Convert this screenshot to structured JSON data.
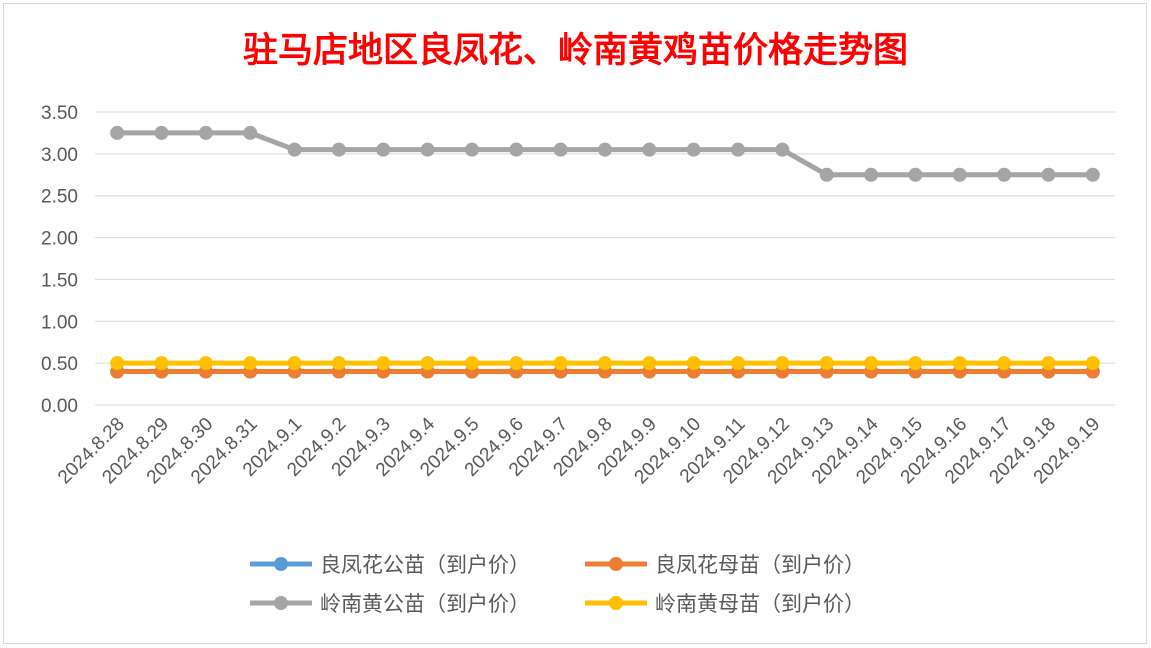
{
  "chart_data": {
    "type": "line",
    "title": "驻马店地区良凤花、岭南黄鸡苗价格走势图",
    "xlabel": "",
    "ylabel": "",
    "x": [
      "2024.8.28",
      "2024.8.29",
      "2024.8.30",
      "2024.8.31",
      "2024.9.1",
      "2024.9.2",
      "2024.9.3",
      "2024.9.4",
      "2024.9.5",
      "2024.9.6",
      "2024.9.7",
      "2024.9.8",
      "2024.9.9",
      "2024.9.10",
      "2024.9.11",
      "2024.9.12",
      "2024.9.13",
      "2024.9.14",
      "2024.9.15",
      "2024.9.16",
      "2024.9.17",
      "2024.9.18",
      "2024.9.19"
    ],
    "ylim": [
      0,
      3.5
    ],
    "yticks": [
      "0.00",
      "0.50",
      "1.00",
      "1.50",
      "2.00",
      "2.50",
      "3.00",
      "3.50"
    ],
    "grid": true,
    "legend_position": "bottom",
    "series": [
      {
        "name": "良凤花公苗（到户价）",
        "color": "#5B9BD5",
        "values": [
          0.4,
          0.4,
          0.4,
          0.4,
          0.4,
          0.4,
          0.4,
          0.4,
          0.4,
          0.4,
          0.4,
          0.4,
          0.4,
          0.4,
          0.4,
          0.4,
          0.4,
          0.4,
          0.4,
          0.4,
          0.4,
          0.4,
          0.4
        ]
      },
      {
        "name": "良凤花母苗（到户价）",
        "color": "#ED7D31",
        "values": [
          0.4,
          0.4,
          0.4,
          0.4,
          0.4,
          0.4,
          0.4,
          0.4,
          0.4,
          0.4,
          0.4,
          0.4,
          0.4,
          0.4,
          0.4,
          0.4,
          0.4,
          0.4,
          0.4,
          0.4,
          0.4,
          0.4,
          0.4
        ]
      },
      {
        "name": "岭南黄公苗（到户价）",
        "color": "#A5A5A5",
        "values": [
          3.25,
          3.25,
          3.25,
          3.25,
          3.05,
          3.05,
          3.05,
          3.05,
          3.05,
          3.05,
          3.05,
          3.05,
          3.05,
          3.05,
          3.05,
          3.05,
          2.75,
          2.75,
          2.75,
          2.75,
          2.75,
          2.75,
          2.75
        ]
      },
      {
        "name": "岭南黄母苗（到户价）",
        "color": "#FFC000",
        "values": [
          0.5,
          0.5,
          0.5,
          0.5,
          0.5,
          0.5,
          0.5,
          0.5,
          0.5,
          0.5,
          0.5,
          0.5,
          0.5,
          0.5,
          0.5,
          0.5,
          0.5,
          0.5,
          0.5,
          0.5,
          0.5,
          0.5,
          0.5
        ]
      }
    ]
  }
}
